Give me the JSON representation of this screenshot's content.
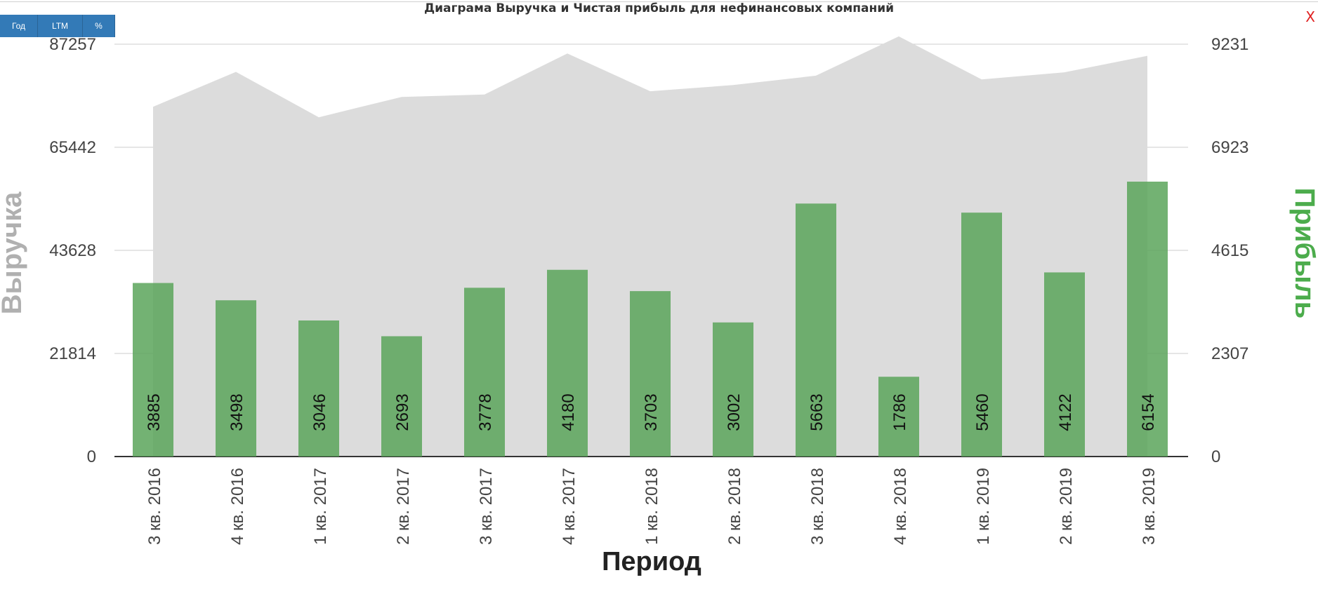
{
  "toolbar": {
    "year_label": "Год",
    "ltm_label": "LTM",
    "percent_label": "%",
    "close_label": "X"
  },
  "colors": {
    "revenue_area": "#dcdcdc",
    "profit_bars": "#5aa55a",
    "profit_axis_title": "#4cac4c",
    "revenue_axis_title": "#b0b0b0",
    "button": "#337ab7",
    "close": "#e02020"
  },
  "chart_data": {
    "type": "bar",
    "title": "Диаграма Выручка и Чистая прибыль для нефинансовых компаний",
    "xlabel": "Период",
    "ylabel_left": "Выручка",
    "ylabel_right": "Прибыль",
    "categories": [
      "3 кв. 2016",
      "4 кв. 2016",
      "1 кв. 2017",
      "2 кв. 2017",
      "3 кв. 2017",
      "4 кв. 2017",
      "1 кв. 2018",
      "2 кв. 2018",
      "3 кв. 2018",
      "4 кв. 2018",
      "1 кв. 2019",
      "2 кв. 2019",
      "3 кв. 2019"
    ],
    "series": [
      {
        "type": "area",
        "axis": "left",
        "values": [
          74000,
          81400,
          71800,
          76100,
          76600,
          85300,
          77300,
          78600,
          80600,
          88900,
          79800,
          81300,
          84800
        ]
      },
      {
        "type": "bar",
        "axis": "right",
        "values": [
          3885,
          3498,
          3046,
          2693,
          3778,
          4180,
          3703,
          3002,
          5663,
          1786,
          5460,
          4122,
          6154
        ]
      }
    ],
    "y_left_ticks": [
      "0",
      "21814",
      "43628",
      "65442",
      "87257"
    ],
    "y_right_ticks": [
      "0",
      "2307",
      "4615",
      "6923",
      "9231"
    ],
    "ylim_left": [
      0,
      87257
    ],
    "ylim_right": [
      0,
      9231
    ],
    "grid": true,
    "legend": "none"
  }
}
